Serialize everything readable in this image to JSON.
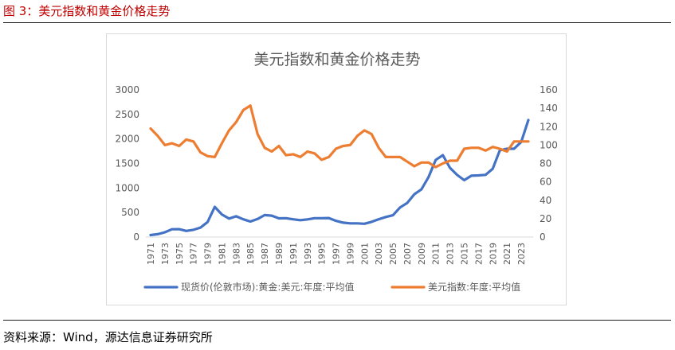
{
  "header": {
    "figure_title": "图 3：美元指数和黄金价格走势"
  },
  "footer": {
    "source": "资料来源：Wind，源达信息证券研究所"
  },
  "chart_data": {
    "type": "line",
    "title": "美元指数和黄金价格走势",
    "x": [
      1971,
      1972,
      1973,
      1974,
      1975,
      1976,
      1977,
      1978,
      1979,
      1980,
      1981,
      1982,
      1983,
      1984,
      1985,
      1986,
      1987,
      1988,
      1989,
      1990,
      1991,
      1992,
      1993,
      1994,
      1995,
      1996,
      1997,
      1998,
      1999,
      2000,
      2001,
      2002,
      2003,
      2004,
      2005,
      2006,
      2007,
      2008,
      2009,
      2010,
      2011,
      2012,
      2013,
      2014,
      2015,
      2016,
      2017,
      2018,
      2019,
      2020,
      2021,
      2022,
      2023,
      2024
    ],
    "x_tick_labels": [
      "1971",
      "1973",
      "1975",
      "1977",
      "1979",
      "1981",
      "1983",
      "1985",
      "1987",
      "1989",
      "1991",
      "1993",
      "1995",
      "1997",
      "1999",
      "2001",
      "2003",
      "2005",
      "2007",
      "2009",
      "2011",
      "2013",
      "2015",
      "2017",
      "2019",
      "2021",
      "2023"
    ],
    "y_left": {
      "lim": [
        0,
        3000
      ],
      "ticks": [
        "0",
        "500",
        "1000",
        "1500",
        "2000",
        "2500",
        "3000"
      ]
    },
    "y_right": {
      "lim": [
        0,
        160
      ],
      "ticks": [
        "0",
        "20",
        "40",
        "60",
        "80",
        "100",
        "120",
        "140",
        "160"
      ]
    },
    "grid": false,
    "legend_position": "bottom",
    "series": [
      {
        "name": "现货价(伦敦市场):黄金:美元:年度:平均值",
        "axis": "left",
        "color": "#4472c4",
        "values": [
          41,
          58,
          97,
          159,
          161,
          125,
          148,
          193,
          306,
          615,
          460,
          376,
          424,
          361,
          317,
          368,
          447,
          437,
          381,
          384,
          362,
          344,
          360,
          384,
          384,
          388,
          331,
          294,
          279,
          279,
          271,
          310,
          363,
          409,
          445,
          604,
          695,
          872,
          972,
          1225,
          1572,
          1669,
          1411,
          1266,
          1160,
          1251,
          1257,
          1268,
          1393,
          1770,
          1800,
          1800,
          1941,
          2386
        ]
      },
      {
        "name": "美元指数:年度:平均值",
        "axis": "right",
        "color": "#ed7d31",
        "values": [
          118,
          110,
          100,
          102,
          99,
          106,
          104,
          92,
          88,
          87,
          102,
          116,
          125,
          138,
          143,
          112,
          97,
          93,
          99,
          89,
          90,
          87,
          93,
          91,
          84,
          87,
          96,
          99,
          100,
          110,
          116,
          112,
          97,
          87,
          87,
          87,
          82,
          77,
          81,
          81,
          76,
          80,
          83,
          83,
          96,
          97,
          97,
          94,
          98,
          96,
          93,
          104,
          104,
          104
        ]
      }
    ]
  }
}
